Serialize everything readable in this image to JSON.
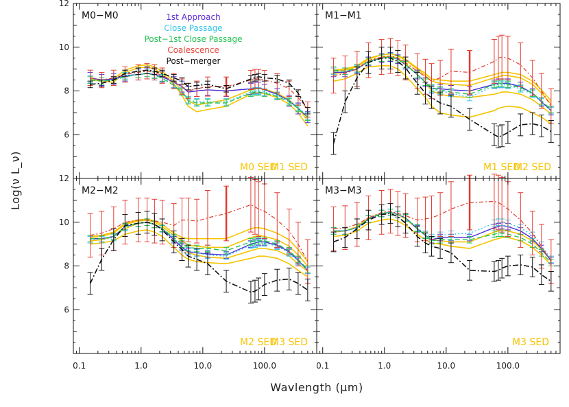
{
  "chart_data": {
    "type": "line",
    "xlabel": "Wavlength (μm)",
    "ylabel": "Log(ν L_ν)",
    "x_scale": "log",
    "xlim": [
      0.08,
      700
    ],
    "ylim": [
      4,
      12
    ],
    "x_tick_labels": [
      "0.1",
      "1.0",
      "10.0",
      "100.0"
    ],
    "x_tick_values": [
      0.1,
      1,
      10,
      100
    ],
    "y_tick_labels": [
      "6",
      "8",
      "10",
      "12"
    ],
    "y_tick_values": [
      6,
      8,
      10,
      12
    ],
    "legend": {
      "placement": "top-center of first panel",
      "entries": [
        {
          "label": "1st Approach",
          "color": "#5b2bd6"
        },
        {
          "label": "Close Passage",
          "color": "#35c6e6"
        },
        {
          "label": "Post−1st Close Passage",
          "color": "#27c255"
        },
        {
          "label": "Coalescence",
          "color": "#e8453c"
        },
        {
          "label": "Post−merger",
          "color": "#111111"
        }
      ]
    },
    "colors": {
      "approach": "#4b2fd8",
      "close": "#35c6e6",
      "post1": "#27c255",
      "coal": "#e23a2e",
      "post": "#111111",
      "sed": "#f5c400"
    },
    "x": [
      0.15,
      0.23,
      0.36,
      0.55,
      0.9,
      1.25,
      1.65,
      2.2,
      3.4,
      4.6,
      5.8,
      8.0,
      12,
      24,
      60,
      70,
      80,
      100,
      160,
      250,
      350,
      500
    ],
    "panels": [
      {
        "title": "M0−M0",
        "sed_labels": [
          "M0 SED",
          "M1 SED"
        ],
        "sed_curves": [
          [
            8.5,
            8.45,
            8.4,
            8.85,
            9.05,
            9.1,
            9.0,
            8.8,
            8.3,
            7.8,
            7.3,
            7.05,
            7.15,
            7.3,
            7.85,
            7.9,
            7.92,
            7.88,
            7.7,
            7.4,
            7.0,
            6.4
          ],
          [
            8.55,
            8.5,
            8.55,
            8.95,
            9.15,
            9.2,
            9.1,
            8.9,
            8.45,
            8.0,
            7.55,
            7.35,
            7.45,
            7.6,
            8.05,
            8.1,
            8.12,
            8.08,
            7.9,
            7.6,
            7.2,
            6.65
          ]
        ],
        "series": [
          {
            "name": "1st Approach",
            "values": [
              8.6,
              8.5,
              8.55,
              8.7,
              8.75,
              8.8,
              8.75,
              8.65,
              8.4,
              8.2,
              7.95,
              8.0,
              8.05,
              8.0,
              8.1,
              8.15,
              8.15,
              8.05,
              7.85,
              7.55,
              7.2,
              6.8
            ],
            "err": 0.25
          },
          {
            "name": "Close Passage",
            "values": [
              8.55,
              8.45,
              8.5,
              8.7,
              8.75,
              8.8,
              8.75,
              8.6,
              8.3,
              8.0,
              7.6,
              7.5,
              7.5,
              7.5,
              7.95,
              8.0,
              8.0,
              7.95,
              7.8,
              7.55,
              7.25,
              6.85
            ],
            "err": 0.15
          },
          {
            "name": "Post−1st Close Passage",
            "values": [
              8.5,
              8.45,
              8.5,
              8.65,
              8.75,
              8.8,
              8.72,
              8.58,
              8.25,
              7.95,
              7.55,
              7.45,
              7.45,
              7.45,
              7.9,
              7.95,
              7.95,
              7.9,
              7.75,
              7.5,
              7.2,
              6.8
            ],
            "err": 0.15
          },
          {
            "name": "Coalescence",
            "values": [
              8.6,
              8.5,
              8.6,
              8.75,
              8.85,
              8.9,
              8.85,
              8.7,
              8.45,
              8.2,
              8.0,
              8.1,
              8.2,
              8.2,
              8.5,
              8.55,
              8.55,
              8.5,
              8.35,
              8.1,
              7.7,
              7.15
            ],
            "err": 0.35
          },
          {
            "name": "Post−merger",
            "values": [
              8.3,
              8.35,
              8.5,
              8.8,
              8.9,
              8.95,
              8.9,
              8.8,
              8.6,
              8.45,
              8.2,
              8.25,
              8.3,
              8.1,
              8.55,
              8.6,
              8.65,
              8.6,
              8.55,
              8.35,
              7.9,
              7.1
            ],
            "err": 0.15
          }
        ]
      },
      {
        "title": "M1−M1",
        "sed_labels": [
          "M1 SED",
          "M2 SED"
        ],
        "sed_curves": [
          [
            8.45,
            8.55,
            8.8,
            9.1,
            9.15,
            9.15,
            9.0,
            8.7,
            8.1,
            7.7,
            7.3,
            7.0,
            6.9,
            6.8,
            7.1,
            7.2,
            7.25,
            7.3,
            7.25,
            7.0,
            6.8,
            6.5
          ],
          [
            8.8,
            8.85,
            9.0,
            9.35,
            9.55,
            9.6,
            9.5,
            9.25,
            8.75,
            8.4,
            8.0,
            7.85,
            7.75,
            7.7,
            7.85,
            7.9,
            7.95,
            7.95,
            7.85,
            7.6,
            7.3,
            6.95
          ],
          [
            8.9,
            8.95,
            9.1,
            9.45,
            9.65,
            9.7,
            9.6,
            9.4,
            9.0,
            8.7,
            8.45,
            8.35,
            8.3,
            8.25,
            8.6,
            8.65,
            8.7,
            8.7,
            8.6,
            8.3,
            7.9,
            7.4
          ],
          [
            8.95,
            9.0,
            9.15,
            9.5,
            9.65,
            9.7,
            9.62,
            9.45,
            9.05,
            8.8,
            8.55,
            8.5,
            8.45,
            8.45,
            8.75,
            8.8,
            8.85,
            8.85,
            8.75,
            8.45,
            8.05,
            7.55
          ]
        ],
        "series": [
          {
            "name": "1st Approach",
            "values": [
              8.85,
              8.85,
              9.0,
              9.35,
              9.5,
              9.55,
              9.45,
              9.2,
              8.75,
              8.4,
              8.1,
              8.1,
              8.05,
              8.0,
              8.3,
              8.35,
              8.35,
              8.35,
              8.2,
              7.9,
              7.5,
              7.1
            ],
            "err": 0.2
          },
          {
            "name": "Close Passage",
            "values": [
              8.9,
              8.9,
              9.0,
              9.35,
              9.5,
              9.55,
              9.45,
              9.2,
              8.75,
              8.4,
              8.1,
              8.0,
              7.9,
              7.7,
              8.25,
              8.3,
              8.3,
              8.25,
              8.1,
              7.85,
              7.5,
              7.1
            ],
            "err": 0.15
          },
          {
            "name": "Post−1st Close Passage",
            "values": [
              8.95,
              8.9,
              9.05,
              9.35,
              9.5,
              9.55,
              9.45,
              9.2,
              8.75,
              8.4,
              8.15,
              8.05,
              7.95,
              7.85,
              8.3,
              8.35,
              8.35,
              8.3,
              8.15,
              7.9,
              7.55,
              7.15
            ],
            "err": 0.15
          },
          {
            "name": "Coalescence",
            "values": [
              8.7,
              8.8,
              9.0,
              9.4,
              9.55,
              9.6,
              9.5,
              9.3,
              8.9,
              8.65,
              8.45,
              8.6,
              8.9,
              8.85,
              9.35,
              9.5,
              9.55,
              9.5,
              9.2,
              8.6,
              8.0,
              7.3
            ],
            "err": 0.8
          },
          {
            "name": "Post−merger",
            "values": [
              5.6,
              7.5,
              8.6,
              9.3,
              9.5,
              9.5,
              9.35,
              9.05,
              8.35,
              7.9,
              7.7,
              7.45,
              7.3,
              6.7,
              6.0,
              5.9,
              5.95,
              6.1,
              6.45,
              6.5,
              6.4,
              6.15
            ],
            "err": 0.5
          }
        ]
      },
      {
        "title": "M2−M2",
        "sed_labels": [
          "M2 SED",
          "M3 SED"
        ],
        "sed_curves": [
          [
            9.0,
            9.05,
            9.15,
            9.45,
            9.6,
            9.65,
            9.55,
            9.35,
            8.85,
            8.5,
            8.3,
            8.2,
            8.15,
            8.1,
            8.35,
            8.4,
            8.45,
            8.45,
            8.35,
            8.1,
            7.8,
            7.5
          ],
          [
            9.15,
            9.2,
            9.35,
            9.7,
            9.95,
            10.0,
            9.9,
            9.7,
            9.2,
            8.85,
            8.6,
            8.5,
            8.4,
            8.35,
            8.7,
            8.75,
            8.8,
            8.8,
            8.7,
            8.45,
            8.1,
            7.75
          ],
          [
            9.3,
            9.35,
            9.5,
            9.9,
            10.05,
            10.1,
            10.0,
            9.8,
            9.4,
            9.15,
            8.95,
            8.9,
            8.85,
            8.85,
            9.3,
            9.35,
            9.4,
            9.35,
            9.2,
            8.9,
            8.5,
            8.0
          ],
          [
            9.35,
            9.4,
            9.55,
            9.95,
            10.1,
            10.15,
            10.05,
            9.9,
            9.5,
            9.3,
            9.25,
            9.25,
            9.25,
            9.25,
            9.7,
            9.75,
            9.75,
            9.7,
            9.5,
            9.2,
            8.75,
            8.2
          ]
        ],
        "series": [
          {
            "name": "1st Approach",
            "values": [
              9.25,
              9.25,
              9.35,
              9.8,
              9.95,
              10.0,
              9.9,
              9.7,
              9.2,
              8.85,
              8.65,
              8.6,
              8.55,
              8.5,
              9.0,
              9.05,
              9.1,
              9.1,
              8.95,
              8.65,
              8.25,
              7.8
            ],
            "err": 0.15
          },
          {
            "name": "Close Passage",
            "values": [
              9.2,
              9.2,
              9.3,
              9.75,
              9.95,
              10.0,
              9.9,
              9.7,
              9.25,
              8.9,
              8.7,
              8.6,
              8.5,
              8.45,
              8.95,
              9.0,
              9.05,
              9.05,
              8.9,
              8.6,
              8.2,
              7.8
            ],
            "err": 0.15
          },
          {
            "name": "Post−1st Close Passage",
            "values": [
              9.25,
              9.25,
              9.35,
              9.8,
              9.95,
              10.0,
              9.9,
              9.72,
              9.3,
              9.0,
              8.85,
              8.8,
              8.8,
              8.7,
              9.1,
              9.15,
              9.15,
              9.15,
              9.0,
              8.7,
              8.3,
              7.85
            ],
            "err": 0.15
          },
          {
            "name": "Coalescence",
            "values": [
              9.4,
              9.5,
              9.7,
              10.0,
              10.1,
              10.1,
              10.05,
              10.0,
              9.85,
              10.1,
              10.1,
              10.05,
              10.2,
              10.4,
              10.8,
              10.7,
              10.6,
              10.5,
              10.1,
              9.6,
              9.0,
              8.2
            ],
            "err": 1.0
          },
          {
            "name": "Post−merger",
            "values": [
              7.2,
              8.3,
              9.2,
              9.85,
              9.95,
              10.0,
              9.9,
              9.65,
              9.1,
              8.75,
              8.45,
              8.3,
              8.1,
              7.3,
              6.8,
              6.85,
              6.95,
              7.15,
              7.35,
              7.4,
              7.2,
              6.9
            ],
            "err": 0.5
          }
        ]
      },
      {
        "title": "M3−M3",
        "sed_labels": [
          "M3 SED"
        ],
        "sed_curves": [
          [
            9.35,
            9.4,
            9.6,
            9.95,
            10.1,
            10.15,
            10.05,
            9.85,
            9.45,
            9.2,
            9.05,
            9.0,
            8.9,
            8.8,
            9.2,
            9.25,
            9.3,
            9.3,
            9.15,
            8.85,
            8.5,
            8.05
          ],
          [
            9.55,
            9.6,
            9.8,
            10.2,
            10.4,
            10.45,
            10.35,
            10.15,
            9.7,
            9.4,
            9.2,
            9.15,
            9.1,
            9.1,
            9.55,
            9.6,
            9.65,
            9.6,
            9.45,
            9.15,
            8.75,
            8.25
          ]
        ],
        "series": [
          {
            "name": "1st Approach",
            "values": [
              9.6,
              9.6,
              9.75,
              10.15,
              10.4,
              10.45,
              10.35,
              10.2,
              9.7,
              9.4,
              9.2,
              9.3,
              9.3,
              9.3,
              9.75,
              9.8,
              9.85,
              9.8,
              9.6,
              9.25,
              8.8,
              8.25
            ],
            "err": 0.15
          },
          {
            "name": "Close Passage",
            "values": [
              9.6,
              9.6,
              9.75,
              10.15,
              10.4,
              10.45,
              10.35,
              10.2,
              9.75,
              9.45,
              9.3,
              9.4,
              9.45,
              9.5,
              9.95,
              10.0,
              10.0,
              9.95,
              9.75,
              9.4,
              8.95,
              8.3
            ],
            "err": 0.15
          },
          {
            "name": "Post−1st Close Passage",
            "values": [
              9.6,
              9.6,
              9.75,
              10.15,
              10.4,
              10.45,
              10.35,
              10.2,
              9.72,
              9.4,
              9.15,
              9.2,
              9.2,
              9.2,
              9.45,
              9.5,
              9.5,
              9.45,
              9.3,
              9.0,
              8.6,
              8.15
            ],
            "err": 0.15
          },
          {
            "name": "Coalescence",
            "values": [
              9.7,
              9.75,
              9.9,
              10.2,
              10.45,
              10.5,
              10.4,
              10.3,
              10.1,
              10.15,
              10.2,
              10.35,
              10.6,
              10.9,
              10.95,
              10.9,
              10.8,
              10.6,
              10.1,
              9.5,
              8.9,
              8.2
            ],
            "err": 1.0
          },
          {
            "name": "Post−merger",
            "values": [
              9.1,
              9.3,
              9.7,
              10.1,
              10.35,
              10.4,
              10.25,
              9.95,
              9.35,
              9.05,
              8.9,
              8.8,
              8.6,
              7.8,
              7.75,
              7.8,
              7.9,
              8.0,
              8.05,
              7.95,
              7.6,
              7.3
            ],
            "err": 0.45
          }
        ]
      }
    ]
  }
}
